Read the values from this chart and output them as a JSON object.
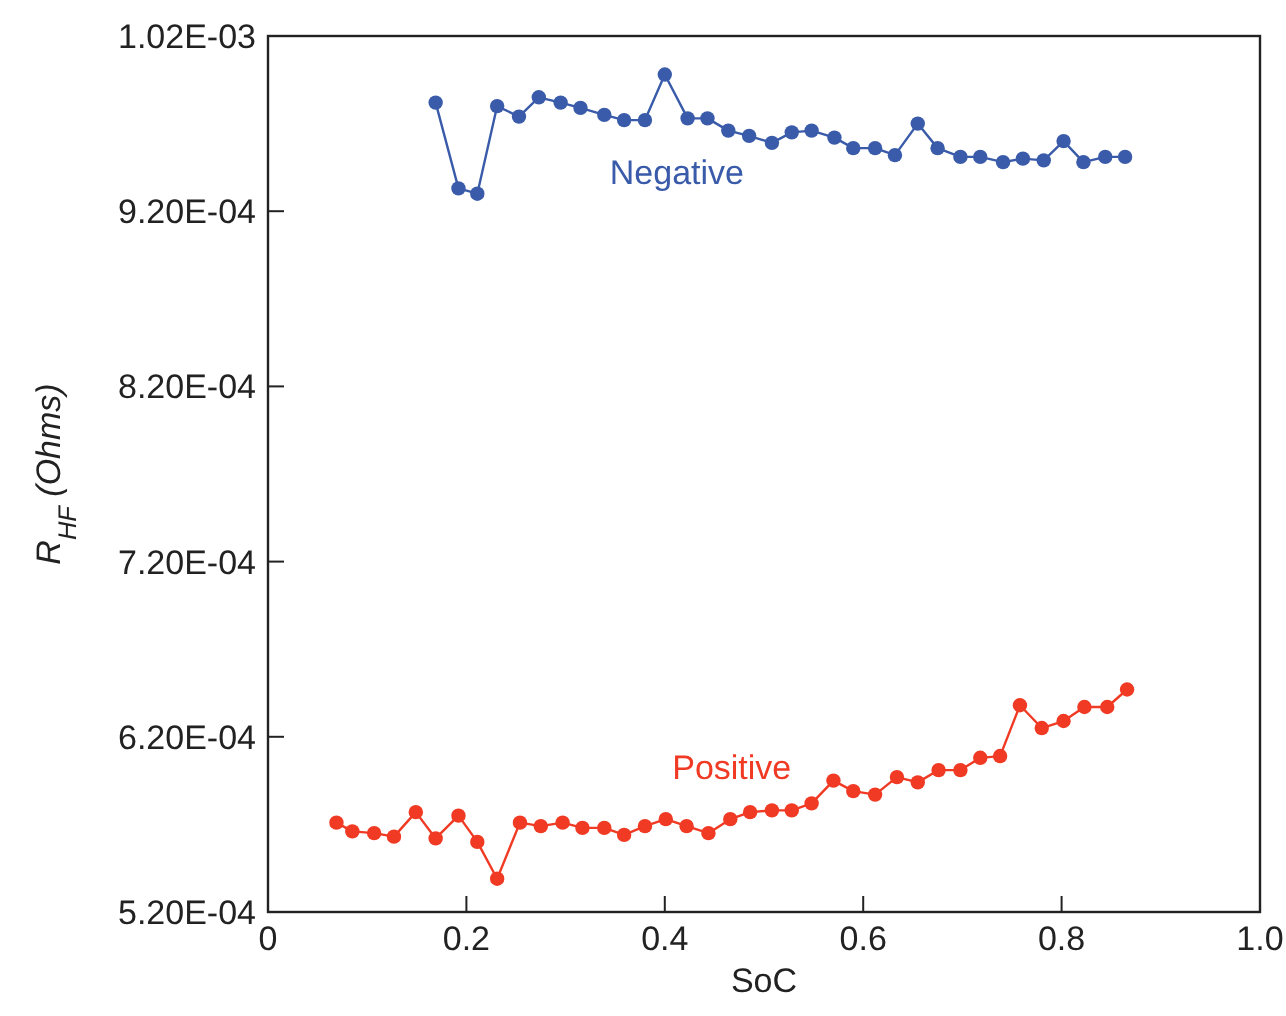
{
  "chart_data": {
    "type": "line",
    "xlabel": "SoC",
    "ylabel": "R$_{HF}$ (Ohms)",
    "xlim": [
      0,
      1
    ],
    "xticks": [
      0,
      0.2,
      0.4,
      0.6,
      0.8,
      {
        "value": 1,
        "label": "1.0"
      }
    ],
    "ylim": [
      0.00052,
      0.00102
    ],
    "yticks": [
      {
        "value": 0.00052,
        "label": "5.20E-04"
      },
      {
        "value": 0.00062,
        "label": "6.20E-04"
      },
      {
        "value": 0.00072,
        "label": "7.20E-04"
      },
      {
        "value": 0.00082,
        "label": "8.20E-04"
      },
      {
        "value": 0.00092,
        "label": "9.20E-04"
      },
      {
        "value": 0.00102,
        "label": "1.02E-03"
      }
    ],
    "grid": false,
    "marker": "circle",
    "line_style": "solid",
    "series": [
      {
        "name": "Negative",
        "color": "#3a5ba9",
        "x": [
          0.169,
          0.192,
          0.211,
          0.231,
          0.253,
          0.273,
          0.295,
          0.315,
          0.339,
          0.359,
          0.38,
          0.4,
          0.423,
          0.443,
          0.464,
          0.485,
          0.508,
          0.528,
          0.548,
          0.571,
          0.59,
          0.612,
          0.632,
          0.655,
          0.675,
          0.698,
          0.718,
          0.741,
          0.761,
          0.782,
          0.802,
          0.822,
          0.844,
          0.864
        ],
        "values": [
          0.000982,
          0.000933,
          0.00093,
          0.00098,
          0.000974,
          0.000985,
          0.000982,
          0.000979,
          0.000975,
          0.000972,
          0.000972,
          0.000998,
          0.000973,
          0.000973,
          0.000966,
          0.000963,
          0.000959,
          0.000965,
          0.000966,
          0.000962,
          0.000956,
          0.000956,
          0.000952,
          0.00097,
          0.000956,
          0.000951,
          0.000951,
          0.000948,
          0.00095,
          0.000949,
          0.00096,
          0.000948,
          0.000951,
          0.000951
        ]
      },
      {
        "name": "Positive",
        "color": "#f03a24",
        "x": [
          0.069,
          0.085,
          0.107,
          0.127,
          0.149,
          0.169,
          0.192,
          0.211,
          0.231,
          0.254,
          0.275,
          0.297,
          0.317,
          0.339,
          0.359,
          0.38,
          0.401,
          0.422,
          0.444,
          0.466,
          0.486,
          0.508,
          0.528,
          0.548,
          0.57,
          0.59,
          0.612,
          0.634,
          0.655,
          0.676,
          0.698,
          0.718,
          0.738,
          0.758,
          0.78,
          0.802,
          0.823,
          0.846,
          0.866
        ],
        "values": [
          0.000571,
          0.000566,
          0.000565,
          0.000563,
          0.000577,
          0.000562,
          0.000575,
          0.00056,
          0.000539,
          0.000571,
          0.000569,
          0.000571,
          0.000568,
          0.000568,
          0.000564,
          0.000569,
          0.000573,
          0.000569,
          0.000565,
          0.000573,
          0.000577,
          0.000578,
          0.000578,
          0.000582,
          0.000595,
          0.000589,
          0.000587,
          0.000597,
          0.000594,
          0.000601,
          0.000601,
          0.000608,
          0.000609,
          0.000638,
          0.000625,
          0.000629,
          0.000637,
          0.000637,
          0.000647
        ]
      }
    ]
  }
}
